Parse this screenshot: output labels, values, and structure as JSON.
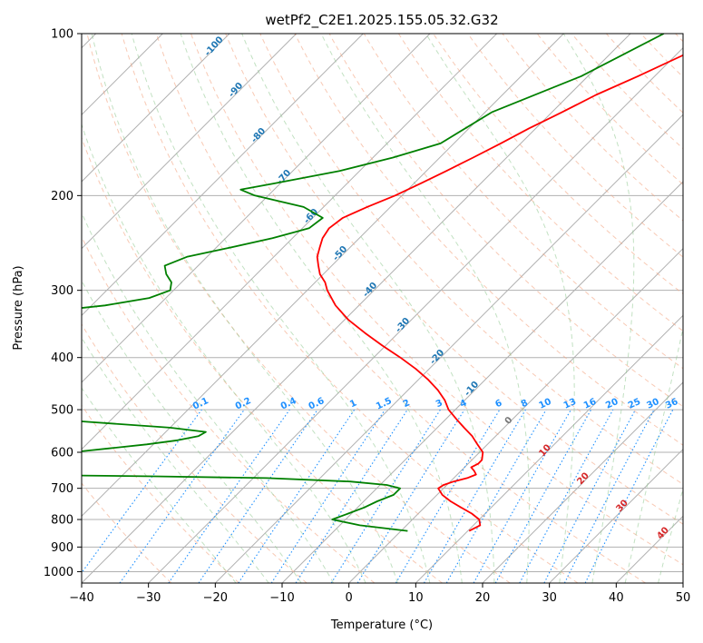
{
  "chart_data": {
    "type": "line",
    "title": "wetPf2_C2E1.2025.155.05.32.G32",
    "xlabel": "Temperature (°C)",
    "ylabel": "Pressure (hPa)",
    "xlim": [
      -40,
      50
    ],
    "ylim": [
      1050,
      100
    ],
    "y_scale": "log",
    "grid": true,
    "x_ticks": [
      -40,
      -30,
      -20,
      -10,
      0,
      10,
      20,
      30,
      40,
      50
    ],
    "y_ticks": [
      100,
      200,
      300,
      400,
      500,
      600,
      700,
      800,
      900,
      1000
    ],
    "series": [
      {
        "color": "#ff0000",
        "p": [
          100,
          110,
          120,
          130,
          140,
          150,
          160,
          170,
          180,
          190,
          200,
          210,
          220,
          230,
          240,
          250,
          260,
          270,
          280,
          290,
          300,
          320,
          340,
          360,
          380,
          400,
          420,
          440,
          460,
          480,
          500,
          520,
          540,
          560,
          580,
          600,
          620,
          630,
          640,
          650,
          660,
          670,
          680,
          690,
          700,
          720,
          740,
          760,
          780,
          800,
          820,
          840
        ],
        "t": [
          -25.5,
          -29,
          -32.5,
          -36,
          -38.5,
          -41,
          -43,
          -45,
          -47,
          -49,
          -51,
          -53.5,
          -55.5,
          -56,
          -55.5,
          -54.5,
          -53.5,
          -52,
          -50.5,
          -48.5,
          -47,
          -43.5,
          -39.5,
          -35,
          -30.5,
          -26,
          -22,
          -18.5,
          -15.5,
          -13,
          -11,
          -8.5,
          -6,
          -3.5,
          -1.5,
          0.5,
          1.5,
          1.5,
          1,
          2,
          2.8,
          2,
          0.5,
          -0.5,
          -0.8,
          0.8,
          3,
          5.5,
          8,
          10,
          11,
          10.2
        ]
      },
      {
        "color": "#008000",
        "p": [
          100,
          120,
          140,
          160,
          170,
          180,
          190,
          195,
          200,
          210,
          220,
          230,
          240,
          250,
          260,
          270,
          280,
          290,
          300,
          310,
          320,
          330,
          340,
          360,
          380,
          480,
          500,
          520,
          540,
          550,
          560,
          570,
          580,
          590,
          600,
          610,
          620,
          630,
          640,
          645,
          650,
          655,
          660,
          665,
          670,
          680,
          690,
          700,
          720,
          740,
          760,
          780,
          800,
          820,
          840
        ],
        "t": [
          -35,
          -41,
          -49,
          -52,
          -57,
          -63,
          -71,
          -75,
          -72,
          -63,
          -58.5,
          -59,
          -63,
          -68,
          -73,
          -75,
          -73.5,
          -71.5,
          -70.5,
          -72.5,
          -78,
          -87,
          -92,
          -94,
          -95,
          -97,
          -93,
          -70,
          -50,
          -44,
          -44.5,
          -47,
          -51,
          -56,
          -61,
          -64,
          -65,
          -59,
          -70,
          -84,
          -95,
          -92,
          -70,
          -45,
          -28,
          -15,
          -9,
          -6.5,
          -6.5,
          -8,
          -9,
          -10.5,
          -12,
          -7,
          1
        ]
      }
    ],
    "dry_adiabat_labels": [
      "-100",
      "-90",
      "-80",
      "-70",
      "-60",
      "-50",
      "-40",
      "-30",
      "-20",
      "-10"
    ],
    "moist_adiabat_labels": [
      "0",
      "10",
      "20",
      "30",
      "40"
    ],
    "mixing_ratio_labels": [
      "0.1",
      "0.2",
      "0.4",
      "0.6",
      "1",
      "1.5",
      "2",
      "3",
      "4",
      "6",
      "8",
      "10",
      "13",
      "16",
      "20",
      "25",
      "30",
      "36"
    ],
    "mixing_ratio_values": [
      0.1,
      0.2,
      0.4,
      0.6,
      1,
      1.5,
      2,
      3,
      4,
      6,
      8,
      10,
      13,
      16,
      20,
      25,
      30,
      36
    ]
  }
}
